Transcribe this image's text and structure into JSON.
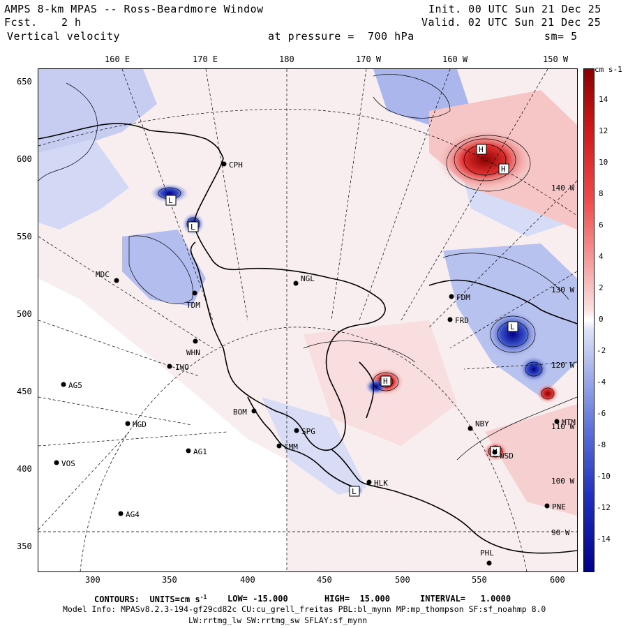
{
  "header": {
    "title": "AMPS 8-km MPAS -- Ross-Beardmore Window",
    "fcst_label": "Fcst.",
    "fcst_value": "2 h",
    "variable": "Vertical velocity",
    "init": "Init. 00 UTC Sun 21 Dec 25",
    "valid": "Valid. 02 UTC Sun 21 Dec 25",
    "pressure": "at pressure =  700 hPa",
    "smoothing": "sm= 5"
  },
  "top_axis": [
    "160 E",
    "170 E",
    "180",
    "170 W",
    "160 W",
    "150 W"
  ],
  "right_meridians": [
    "140 W",
    "130 W",
    "120 W",
    "110 W",
    "100 W",
    "90 W"
  ],
  "y_ticks": [
    "650",
    "600",
    "550",
    "500",
    "450",
    "400",
    "350"
  ],
  "x_ticks": [
    "300",
    "350",
    "400",
    "450",
    "500",
    "550",
    "600"
  ],
  "colorbar": {
    "unit": "cm s-1",
    "labels": [
      "14",
      "12",
      "10",
      "8",
      "6",
      "4",
      "2",
      "0",
      "-2",
      "-4",
      "-6",
      "-8",
      "-10",
      "-12",
      "-14"
    ],
    "colors": {
      "max": "#8b0000",
      "mid": "#ffffff",
      "min": "#00008b"
    }
  },
  "stations": [
    {
      "name": "CPH"
    },
    {
      "name": "MDC"
    },
    {
      "name": "TDM"
    },
    {
      "name": "NGL"
    },
    {
      "name": "WHN"
    },
    {
      "name": "IWO"
    },
    {
      "name": "AG5"
    },
    {
      "name": "MGD"
    },
    {
      "name": "BOM"
    },
    {
      "name": "AG1"
    },
    {
      "name": "VOS"
    },
    {
      "name": "AG4"
    },
    {
      "name": "CMM"
    },
    {
      "name": "SPG"
    },
    {
      "name": "HLK"
    },
    {
      "name": "FDM"
    },
    {
      "name": "FRD"
    },
    {
      "name": "NBY"
    },
    {
      "name": "WSD"
    },
    {
      "name": "MTM"
    },
    {
      "name": "PNE"
    },
    {
      "name": "PHL"
    }
  ],
  "extrema_labels": [
    "L",
    "L",
    "L",
    "H",
    "H",
    "H",
    "H",
    "L"
  ],
  "footer": {
    "contours": "CONTOURS:  UNITS=cm s",
    "contours_sup": "-1",
    "low": "LOW= -15.000",
    "high": "HIGH=  15.000",
    "interval": "INTERVAL=   1.0000",
    "model_info": "Model Info: MPASv8.2.3-194-gf29cd82c CU:cu_grell_freitas PBL:bl_mynn MP:mp_thompson SF:sf_noahmp 8.0",
    "model_info2": "LW:rrtmg_lw SW:rrtmg_sw SFLAY:sf_mynn"
  }
}
